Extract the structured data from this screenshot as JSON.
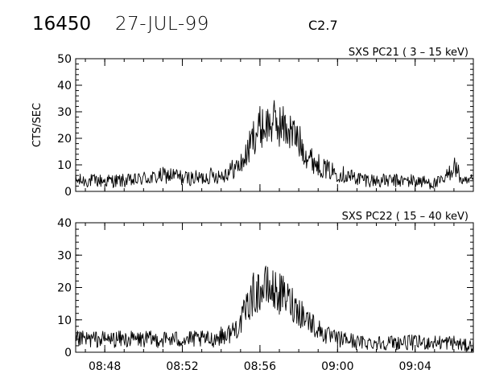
{
  "header": {
    "event_id": "16450",
    "date": "27-JUL-99",
    "flare_class": "C2.7"
  },
  "chart_data": [
    {
      "type": "line",
      "title": "SXS PC21  (  3 – 15 keV)",
      "xlabel": "",
      "ylabel": "CTS/SEC",
      "ylim": [
        0,
        50
      ],
      "yticks": [
        "0",
        "10",
        "20",
        "30",
        "40",
        "50"
      ],
      "xrange": [
        "08:46:30",
        "09:07:00"
      ],
      "xticks": [],
      "grid": false,
      "series": [
        {
          "x": [
            "08:46:30",
            "08:47:30",
            "08:48:30",
            "08:49:30",
            "08:50:00",
            "08:50:30",
            "08:51:00",
            "08:51:40",
            "08:52:00",
            "08:52:30",
            "08:53:00",
            "08:53:30",
            "08:54:00",
            "08:54:30",
            "08:55:00",
            "08:55:20",
            "08:55:40",
            "08:56:00",
            "08:56:20",
            "08:56:40",
            "08:57:00",
            "08:57:20",
            "08:57:40",
            "08:58:00",
            "08:58:30",
            "08:59:00",
            "08:59:30",
            "09:00:00",
            "09:00:30",
            "09:01:00",
            "09:02:00",
            "09:03:00",
            "09:04:00",
            "09:05:00",
            "09:05:30",
            "09:06:00",
            "09:06:30",
            "09:07:00"
          ],
          "y": [
            4,
            4,
            4,
            4,
            5,
            5,
            6,
            6,
            5,
            5,
            5,
            6,
            6,
            8,
            10,
            14,
            21,
            24,
            25,
            26,
            25,
            24,
            22,
            19,
            13,
            10,
            8,
            7,
            6,
            5,
            4,
            4,
            4,
            3,
            4,
            10,
            3,
            4
          ]
        }
      ]
    },
    {
      "type": "line",
      "title": "SXS PC22  ( 15 – 40 keV)",
      "xlabel": "",
      "ylabel": "",
      "ylim": [
        0,
        40
      ],
      "yticks": [
        "0",
        "10",
        "20",
        "30",
        "40"
      ],
      "xrange": [
        "08:46:30",
        "09:07:00"
      ],
      "xticks": [
        "08:48",
        "08:52",
        "08:56",
        "09:00",
        "09:04"
      ],
      "grid": false,
      "series": [
        {
          "x": [
            "08:46:30",
            "08:47:30",
            "08:48:30",
            "08:49:30",
            "08:50:00",
            "08:50:30",
            "08:51:00",
            "08:51:40",
            "08:52:00",
            "08:52:30",
            "08:53:00",
            "08:53:30",
            "08:54:00",
            "08:54:30",
            "08:55:00",
            "08:55:20",
            "08:55:40",
            "08:56:00",
            "08:56:20",
            "08:56:40",
            "08:57:00",
            "08:57:20",
            "08:57:40",
            "08:58:00",
            "08:58:30",
            "08:59:00",
            "08:59:30",
            "09:00:00",
            "09:00:30",
            "09:01:00",
            "09:02:00",
            "09:03:00",
            "09:04:00",
            "09:05:00",
            "09:05:30",
            "09:06:00",
            "09:06:30",
            "09:07:00"
          ],
          "y": [
            4,
            4,
            4,
            4,
            4,
            4,
            4,
            4,
            4,
            4,
            4,
            4,
            5,
            6,
            9,
            14,
            18,
            19,
            20,
            19,
            18,
            17,
            15,
            13,
            10,
            7,
            5,
            4,
            4,
            3,
            3,
            3,
            3,
            3,
            3,
            3,
            2,
            2
          ]
        }
      ]
    }
  ]
}
